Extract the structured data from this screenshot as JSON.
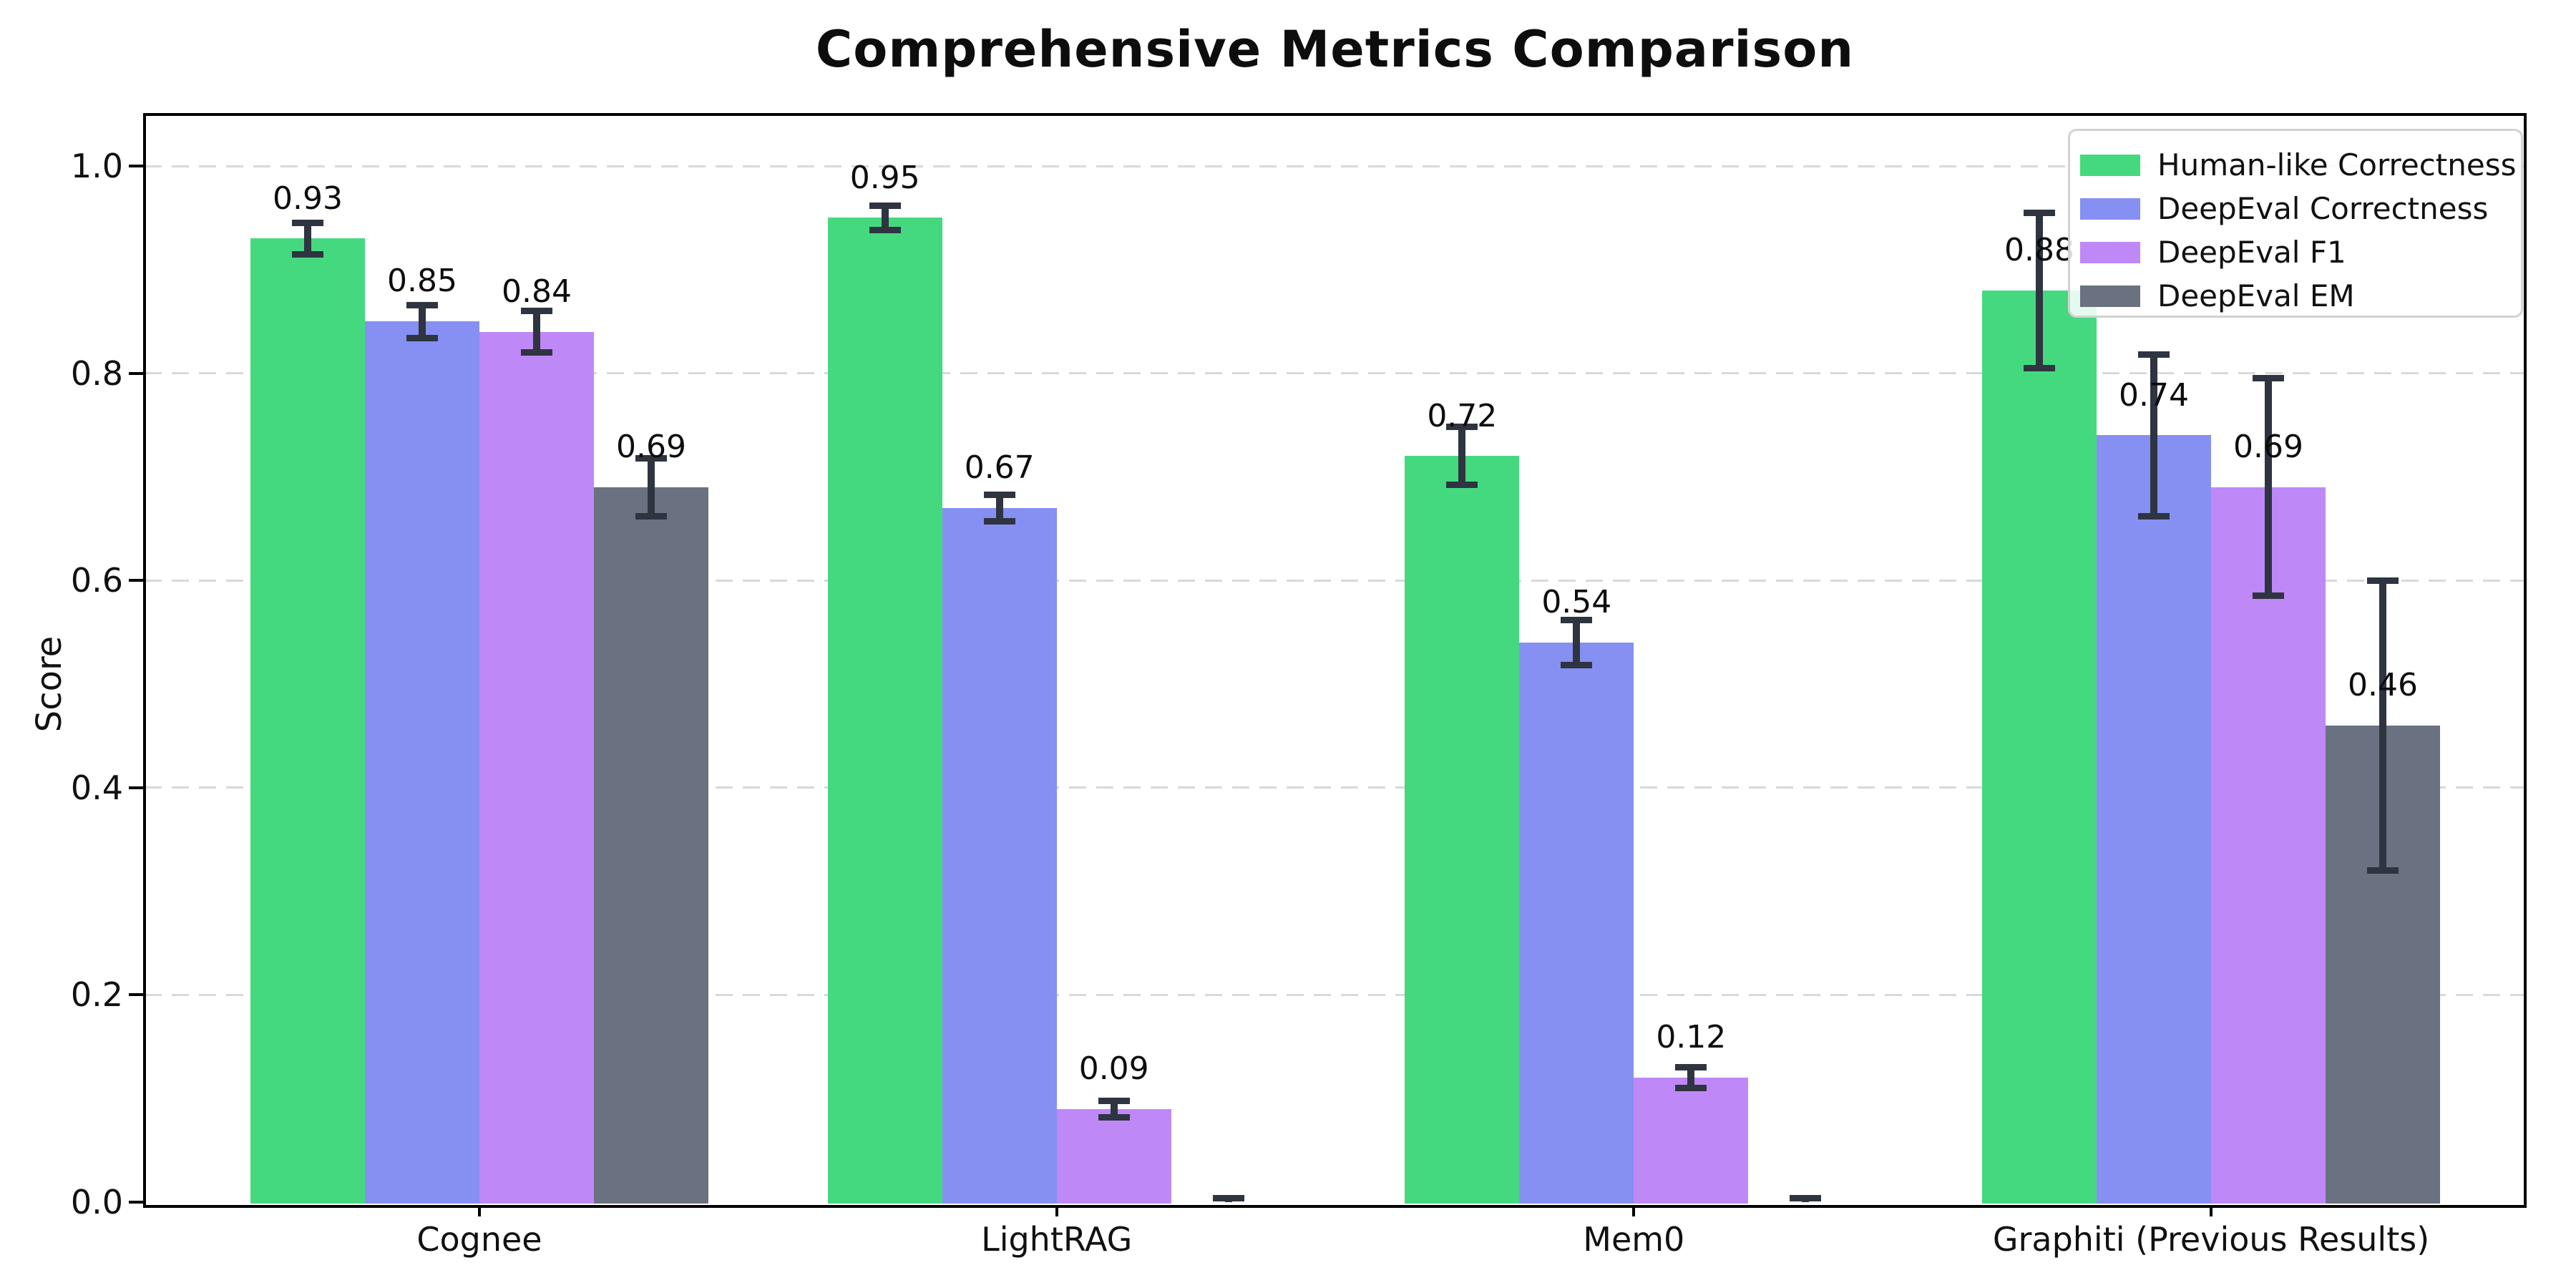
{
  "title": "Comprehensive Metrics Comparison",
  "ylabel": "Score",
  "chart_data": {
    "type": "bar",
    "categories": [
      "Cognee",
      "LightRAG",
      "Mem0",
      "Graphiti (Previous Results)"
    ],
    "series": [
      {
        "name": "Human-like Correctness",
        "color": "#45d97f",
        "values": [
          0.93,
          0.95,
          0.72,
          0.88
        ],
        "errors": [
          0.015,
          0.012,
          0.028,
          0.075
        ]
      },
      {
        "name": "DeepEval Correctness",
        "color": "#8690f2",
        "values": [
          0.85,
          0.67,
          0.54,
          0.74
        ],
        "errors": [
          0.016,
          0.013,
          0.022,
          0.078
        ]
      },
      {
        "name": "DeepEval F1",
        "color": "#bf88f7",
        "values": [
          0.84,
          0.09,
          0.12,
          0.69
        ],
        "errors": [
          0.02,
          0.008,
          0.01,
          0.105
        ]
      },
      {
        "name": "DeepEval EM",
        "color": "#6a7180",
        "values": [
          0.69,
          0.0,
          0.0,
          0.46
        ],
        "errors": [
          0.028,
          0.004,
          0.004,
          0.14
        ]
      }
    ],
    "yticks": [
      0.0,
      0.2,
      0.4,
      0.6,
      0.8,
      1.0
    ],
    "ylim": [
      0.0,
      1.05
    ],
    "grid": "dashed-horizontal",
    "legend_position": "upper-right",
    "bar_value_labels": true,
    "error_bar_color": "#2e3440",
    "gridline_color": "#d9d9d9"
  }
}
